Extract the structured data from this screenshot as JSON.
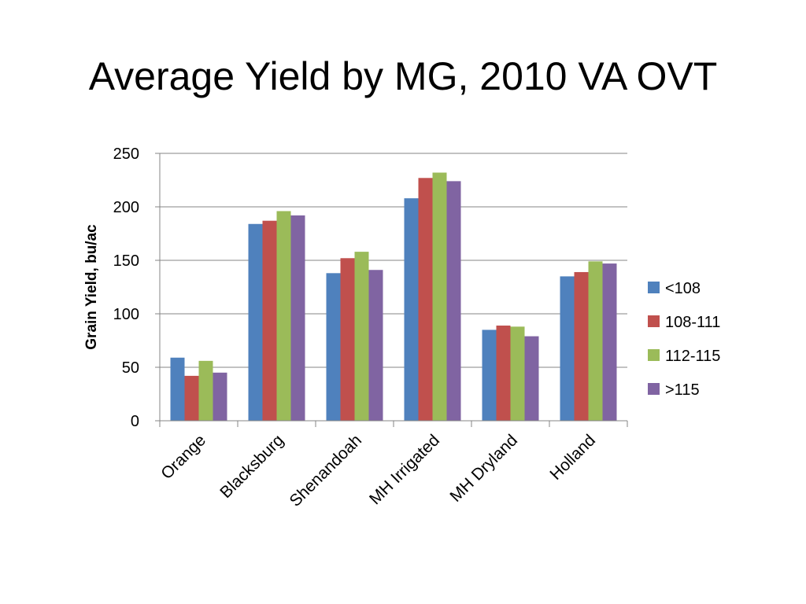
{
  "slide": {
    "title": "Average Yield by MG, 2010 VA OVT"
  },
  "chart_data": {
    "type": "bar",
    "title": "Average Yield by MG, 2010 VA OVT",
    "xlabel": "",
    "ylabel": "Grain Yield, bu/ac",
    "ylim": [
      0,
      250
    ],
    "yticks": [
      0,
      50,
      100,
      150,
      200,
      250
    ],
    "grid": true,
    "legend_position": "right",
    "categories": [
      "Orange",
      "Blacksburg",
      "Shenandoah",
      "MH Irrigated",
      "MH Dryland",
      "Holland"
    ],
    "series": [
      {
        "name": "<108",
        "color": "#4F81BD",
        "values": [
          59,
          184,
          138,
          208,
          85,
          135
        ]
      },
      {
        "name": "108-111",
        "color": "#C0504D",
        "values": [
          42,
          187,
          152,
          227,
          89,
          139
        ]
      },
      {
        "name": "112-115",
        "color": "#9BBB59",
        "values": [
          56,
          196,
          158,
          232,
          88,
          149
        ]
      },
      {
        "name": ">115",
        "color": "#8064A2",
        "values": [
          45,
          192,
          141,
          224,
          79,
          147
        ]
      }
    ]
  }
}
